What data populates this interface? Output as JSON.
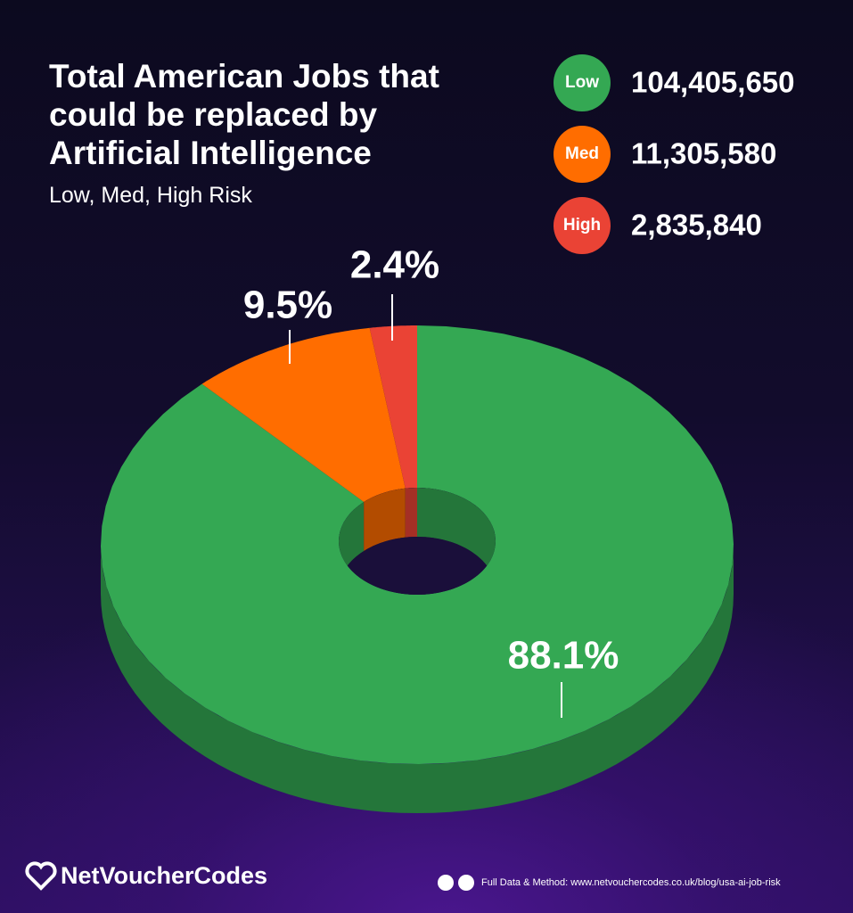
{
  "chart_data": {
    "type": "pie3d",
    "title": "Total American Jobs that could be replaced by Artificial Intelligence",
    "subtitle": "Low, Med, High Risk",
    "categories": [
      "Low",
      "Med",
      "High"
    ],
    "values": [
      88.1,
      9.5,
      2.4
    ],
    "value_labels": [
      "88.1%",
      "9.5%",
      "2.4%"
    ],
    "colors": [
      "#34a853",
      "#ff6d00",
      "#ea4335"
    ],
    "legend_values": [
      {
        "value": 104405650,
        "label": "104,405,650"
      },
      {
        "value": 11305580,
        "label": "11,305,580"
      },
      {
        "value": 2835840,
        "label": "2,835,840"
      }
    ]
  },
  "footer": {
    "brand": "NetVoucherCodes",
    "source": "Full Data & Method: www.netvouchercodes.co.uk/blog/usa-ai-job-risk"
  }
}
